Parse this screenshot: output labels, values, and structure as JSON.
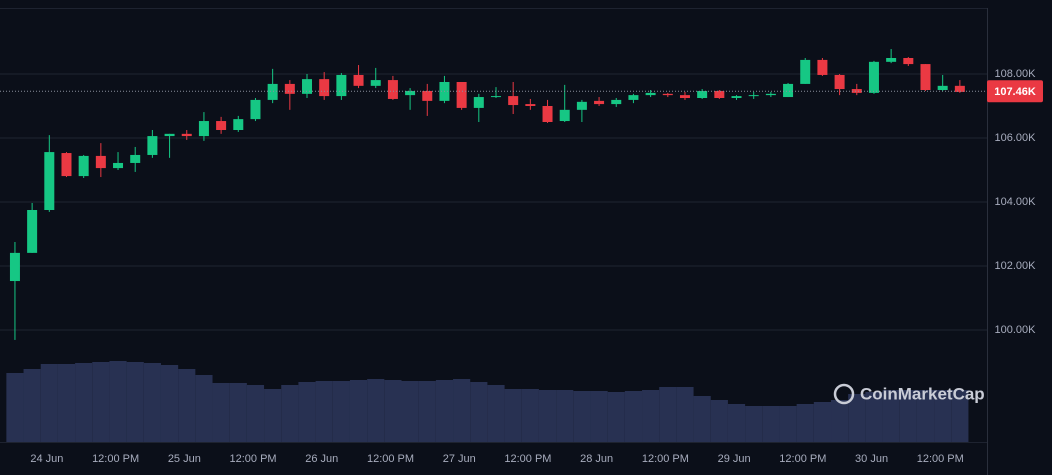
{
  "chart_data": {
    "type": "candlestick",
    "open": [
      101530,
      102410,
      103750,
      105530,
      104810,
      105440,
      105060,
      105220,
      105470,
      106060,
      106130,
      106060,
      106530,
      106250,
      106590,
      107190,
      107690,
      107380,
      107840,
      107310,
      107970,
      107630,
      107810,
      107340,
      107470,
      107160,
      107750,
      106940,
      107280,
      107310,
      107060,
      107000,
      106530,
      106880,
      107160,
      107060,
      107190,
      107340,
      107380,
      107340,
      107250,
      107470,
      107250,
      107310,
      107340,
      107280,
      107690,
      108440,
      107970,
      107530,
      107410,
      108380,
      108500,
      108310,
      107500,
      107630
    ],
    "high": [
      102750,
      103970,
      106090,
      105560,
      105470,
      105840,
      105560,
      105720,
      106250,
      106130,
      106250,
      106810,
      106660,
      106690,
      107250,
      108160,
      107810,
      108000,
      108060,
      108030,
      108280,
      108190,
      107940,
      107560,
      107690,
      107940,
      107750,
      107380,
      107590,
      107750,
      107220,
      107190,
      107660,
      107190,
      107280,
      107250,
      107380,
      107500,
      107410,
      107440,
      107530,
      107500,
      107340,
      107440,
      107440,
      107720,
      108500,
      108500,
      108000,
      107690,
      108410,
      108780,
      108530,
      108310,
      107970,
      107810
    ],
    "low": [
      99690,
      102410,
      103690,
      104780,
      104750,
      104780,
      105000,
      104940,
      105380,
      105380,
      105940,
      105910,
      106130,
      106190,
      106530,
      107090,
      106880,
      107250,
      107190,
      107190,
      107560,
      107560,
      107190,
      106880,
      106690,
      107090,
      106880,
      106500,
      107250,
      106750,
      106880,
      106470,
      106500,
      106500,
      107000,
      106970,
      107090,
      107280,
      107280,
      107190,
      107220,
      107220,
      107190,
      107220,
      107280,
      107280,
      107690,
      107940,
      107340,
      107340,
      107380,
      108340,
      108250,
      107470,
      107470,
      107410
    ],
    "close": [
      102410,
      103750,
      105560,
      104810,
      105440,
      105060,
      105220,
      105470,
      106060,
      106130,
      106060,
      106530,
      106250,
      106590,
      107190,
      107690,
      107380,
      107840,
      107310,
      107970,
      107630,
      107810,
      107220,
      107470,
      107160,
      107750,
      106940,
      107280,
      107310,
      107030,
      107000,
      106500,
      106880,
      107130,
      107060,
      107190,
      107340,
      107410,
      107340,
      107250,
      107470,
      107250,
      107310,
      107340,
      107380,
      107690,
      108440,
      107970,
      107530,
      107410,
      108380,
      108500,
      108310,
      107500,
      107630,
      107440
    ],
    "volume": [
      69,
      73,
      78,
      78,
      79,
      80,
      81,
      80,
      79,
      77,
      73,
      67,
      59,
      59,
      57,
      53,
      57,
      60,
      61,
      61,
      62,
      63,
      62,
      61,
      61,
      62,
      63,
      60,
      57,
      53,
      53,
      52,
      52,
      51,
      51,
      50,
      51,
      52,
      55,
      55,
      46,
      42,
      38,
      36,
      36,
      36,
      38,
      40,
      42,
      48,
      50,
      52,
      52,
      52,
      52,
      52
    ],
    "up_color": "#16c784",
    "down_color": "#ea3943",
    "volume_color": "#283152",
    "ylim": [
      96500,
      110000
    ],
    "yticks": [
      {
        "value": 100000,
        "label": "100.00K"
      },
      {
        "value": 102000,
        "label": "102.00K"
      },
      {
        "value": 104000,
        "label": "104.00K"
      },
      {
        "value": 106000,
        "label": "106.00K"
      },
      {
        "value": 108000,
        "label": "108.00K"
      }
    ],
    "xlim": [
      -0.87,
      56.58
    ],
    "xticks": [
      {
        "value": 1.86,
        "label": "24 Jun"
      },
      {
        "value": 5.86,
        "label": "12:00 PM"
      },
      {
        "value": 9.86,
        "label": "25 Jun"
      },
      {
        "value": 13.86,
        "label": "12:00 PM"
      },
      {
        "value": 17.86,
        "label": "26 Jun"
      },
      {
        "value": 21.86,
        "label": "12:00 PM"
      },
      {
        "value": 25.86,
        "label": "27 Jun"
      },
      {
        "value": 29.86,
        "label": "12:00 PM"
      },
      {
        "value": 33.86,
        "label": "28 Jun"
      },
      {
        "value": 37.86,
        "label": "12:00 PM"
      },
      {
        "value": 41.86,
        "label": "29 Jun"
      },
      {
        "value": 45.86,
        "label": "12:00 PM"
      },
      {
        "value": 49.86,
        "label": "30 Jun"
      },
      {
        "value": 53.86,
        "label": "12:00 PM"
      }
    ],
    "current_price": {
      "value": 107460,
      "label": "107.46K"
    },
    "grid": true,
    "watermark": "CoinMarketCap"
  }
}
